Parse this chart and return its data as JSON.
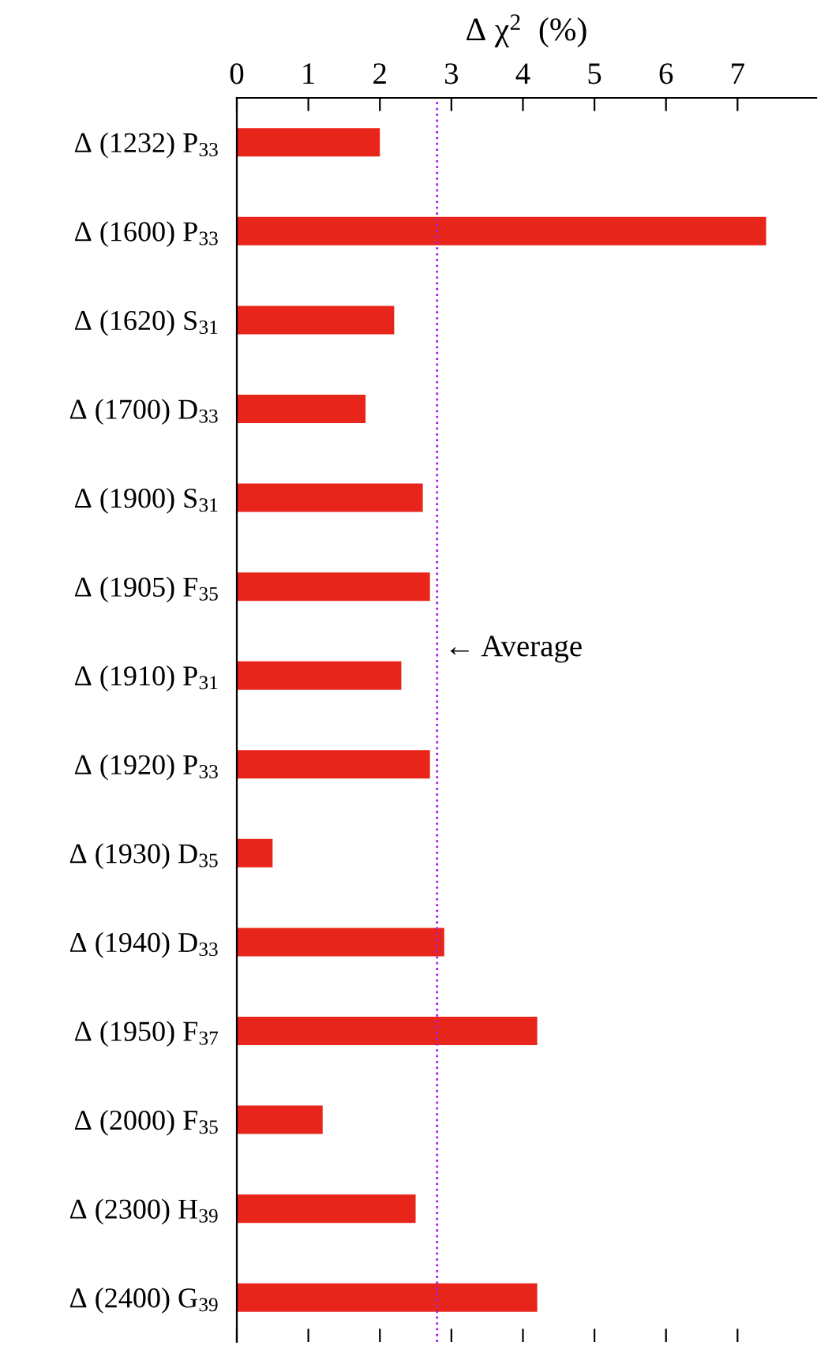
{
  "chart_data": {
    "type": "bar",
    "orientation": "horizontal",
    "xlabel": "Δ χ$^{2}$  (%)",
    "categories": [
      "Δ (1232) P$_{33}$",
      "Δ (1600) P$_{33}$",
      "Δ (1620) S$_{31}$",
      "Δ (1700) D$_{33}$",
      "Δ (1900) S$_{31}$",
      "Δ (1905) F$_{35}$",
      "Δ (1910) P$_{31}$",
      "Δ (1920) P$_{33}$",
      "Δ (1930) D$_{35}$",
      "Δ (1940) D$_{33}$",
      "Δ (1950) F$_{37}$",
      "Δ (2000) F$_{35}$",
      "Δ (2300) H$_{39}$",
      "Δ (2400) G$_{39}$"
    ],
    "values": [
      2.0,
      7.4,
      2.2,
      1.8,
      2.6,
      2.7,
      2.3,
      2.7,
      0.5,
      2.9,
      4.2,
      1.2,
      2.5,
      4.2
    ],
    "color": "#e8251a",
    "xlim": [
      0,
      8.1
    ],
    "xticks": [
      0,
      1,
      2,
      3,
      4,
      5,
      6,
      7
    ],
    "ref_lines": [
      {
        "axis": "x",
        "value": 2.8,
        "label": "← Average",
        "color": "#a020f0",
        "line_style": "dotted"
      }
    ],
    "grid": false,
    "legend": false
  }
}
